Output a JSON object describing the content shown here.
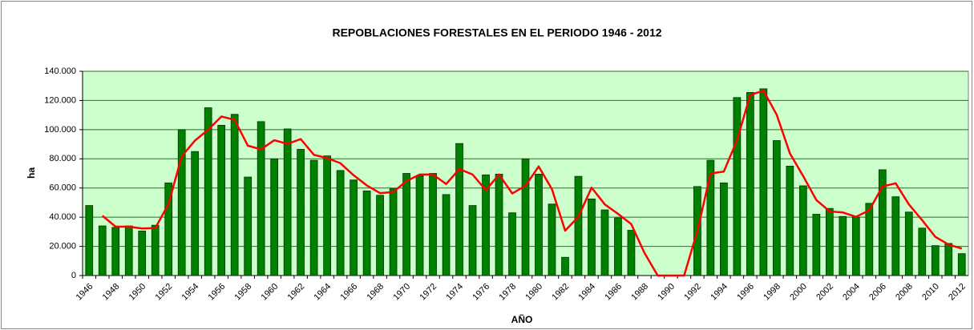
{
  "chart_data": {
    "type": "bar",
    "title": "REPOBLACIONES FORESTALES EN EL PERIODO 1946 - 2012",
    "y_label": "ha",
    "x_label": "AÑO",
    "categories": [
      "1946",
      null,
      "1948",
      null,
      "1950",
      null,
      "1952",
      null,
      "1954",
      null,
      "1956",
      null,
      "1958",
      null,
      "1960",
      null,
      "1962",
      null,
      "1964",
      null,
      "1966",
      null,
      "1968",
      null,
      "1970",
      null,
      "1972",
      null,
      "1974",
      null,
      "1976",
      null,
      "1978",
      null,
      "1980",
      null,
      "1982",
      null,
      "1984",
      null,
      "1986",
      null,
      "1988",
      null,
      "1990",
      null,
      "1992",
      null,
      "1994",
      null,
      "1996",
      null,
      "1998",
      null,
      "2000",
      null,
      "2002",
      null,
      "2004",
      null,
      "2006",
      null,
      "2008",
      null,
      "2010",
      null,
      "2012"
    ],
    "series": [
      {
        "type": "bar",
        "color": "#008000",
        "values": [
          48000,
          34000,
          33000,
          34000,
          30500,
          34500,
          63500,
          100000,
          85000,
          115000,
          103000,
          110500,
          67500,
          105500,
          80000,
          100500,
          86500,
          79000,
          82000,
          72000,
          65500,
          58000,
          55000,
          59500,
          70000,
          68500,
          70000,
          55500,
          90500,
          48000,
          69000,
          69500,
          43000,
          80000,
          69500,
          49000,
          12500,
          68000,
          52500,
          45000,
          39500,
          31000,
          0,
          0,
          0,
          0,
          61000,
          79000,
          63500,
          122000,
          125500,
          128000,
          92500,
          75000,
          61500,
          42000,
          46000,
          40500,
          40000,
          49500,
          72500,
          54000,
          43500,
          32500,
          20500,
          22000,
          15000
        ]
      },
      {
        "type": "line",
        "color": "#ff0000",
        "values": [
          null,
          41000,
          33500,
          33500,
          32250,
          32500,
          49000,
          81750,
          92500,
          100000,
          109000,
          106750,
          89000,
          86500,
          92750,
          90250,
          93500,
          82750,
          80500,
          77000,
          68750,
          61750,
          56500,
          57250,
          64750,
          69250,
          69250,
          62750,
          73000,
          69250,
          58500,
          69250,
          56250,
          61500,
          74750,
          59250,
          30750,
          40250,
          60250,
          48750,
          42250,
          35250,
          15500,
          0,
          0,
          0,
          30500,
          70000,
          71250,
          92750,
          123750,
          126750,
          110250,
          83750,
          68250,
          51750,
          44000,
          43250,
          40250,
          44750,
          61000,
          63250,
          48750,
          38000,
          26500,
          21250,
          18500
        ]
      }
    ],
    "ylim": [
      0,
      140000
    ],
    "yticks": [
      0,
      {
        "value": 20000,
        "label": "20.000"
      },
      {
        "value": 40000,
        "label": "40.000"
      },
      {
        "value": 60000,
        "label": "60.000"
      },
      {
        "value": 80000,
        "label": "80.000"
      },
      {
        "value": 100000,
        "label": "100.000"
      },
      {
        "value": 120000,
        "label": "120.000"
      },
      {
        "value": 140000,
        "label": "140.000"
      }
    ],
    "grid": true,
    "plot_background": "#ccffcc"
  }
}
